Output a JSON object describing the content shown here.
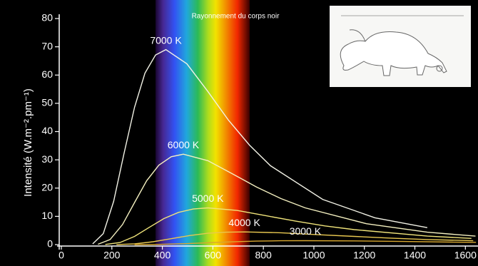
{
  "chart_data": {
    "type": "line",
    "title": "Rayonnement du corps noir",
    "y_label": "Intensité (W.m⁻².pm⁻¹)",
    "xlim": [
      0,
      1650
    ],
    "ylim": [
      0,
      80
    ],
    "xticks": [
      0,
      200,
      400,
      600,
      800,
      1000,
      1200,
      1400,
      1600
    ],
    "yticks": [
      0,
      10,
      20,
      30,
      40,
      50,
      60,
      70,
      80
    ],
    "series": [
      {
        "name": "7000 K",
        "color": "#f2f2e6",
        "x": [
          124,
          166,
          207,
          248,
          290,
          331,
          373,
          414,
          497,
          580,
          662,
          745,
          828,
          1035,
          1242,
          1449
        ],
        "values": [
          0.26,
          3.9,
          15.3,
          32.2,
          48.6,
          60.7,
          67.1,
          69,
          64.0,
          54.2,
          44.0,
          35.2,
          27.9,
          16.0,
          9.5,
          6.0
        ]
      },
      {
        "name": "6000 K",
        "color": "#f4f0c0",
        "x": [
          145,
          193,
          242,
          290,
          338,
          386,
          435,
          483,
          580,
          676,
          773,
          869,
          966,
          1208,
          1449,
          1640
        ],
        "values": [
          0.12,
          1.8,
          7.1,
          14.9,
          22.6,
          28.1,
          31.1,
          32,
          29.7,
          25.1,
          20.4,
          16.3,
          13.0,
          7.4,
          4.4,
          3.0
        ]
      },
      {
        "name": "5000 K",
        "color": "#efe37a",
        "x": [
          174,
          232,
          290,
          348,
          406,
          464,
          522,
          580,
          696,
          812,
          928,
          1044,
          1160,
          1450,
          1624
        ],
        "values": [
          0.05,
          0.74,
          2.9,
          6.1,
          9.2,
          11.4,
          12.6,
          13,
          12.1,
          10.2,
          8.3,
          6.6,
          5.3,
          3.0,
          2.2
        ]
      },
      {
        "name": "4000 K",
        "color": "#e8c850",
        "x": [
          218,
          290,
          363,
          435,
          508,
          580,
          653,
          725,
          870,
          1015,
          1160,
          1305,
          1450,
          1631
        ],
        "values": [
          0.02,
          0.26,
          1.0,
          2.1,
          3.2,
          4.0,
          4.4,
          4.5,
          4.2,
          3.5,
          2.9,
          2.3,
          1.8,
          1.37
        ]
      },
      {
        "name": "3000 K",
        "color": "#d9a830",
        "x": [
          290,
          386,
          483,
          580,
          676,
          773,
          869,
          966,
          1159,
          1352,
          1546,
          1642
        ],
        "values": [
          0.005,
          0.08,
          0.31,
          0.65,
          0.99,
          1.23,
          1.36,
          1.4,
          1.3,
          1.1,
          0.89,
          0.8
        ]
      }
    ]
  }
}
